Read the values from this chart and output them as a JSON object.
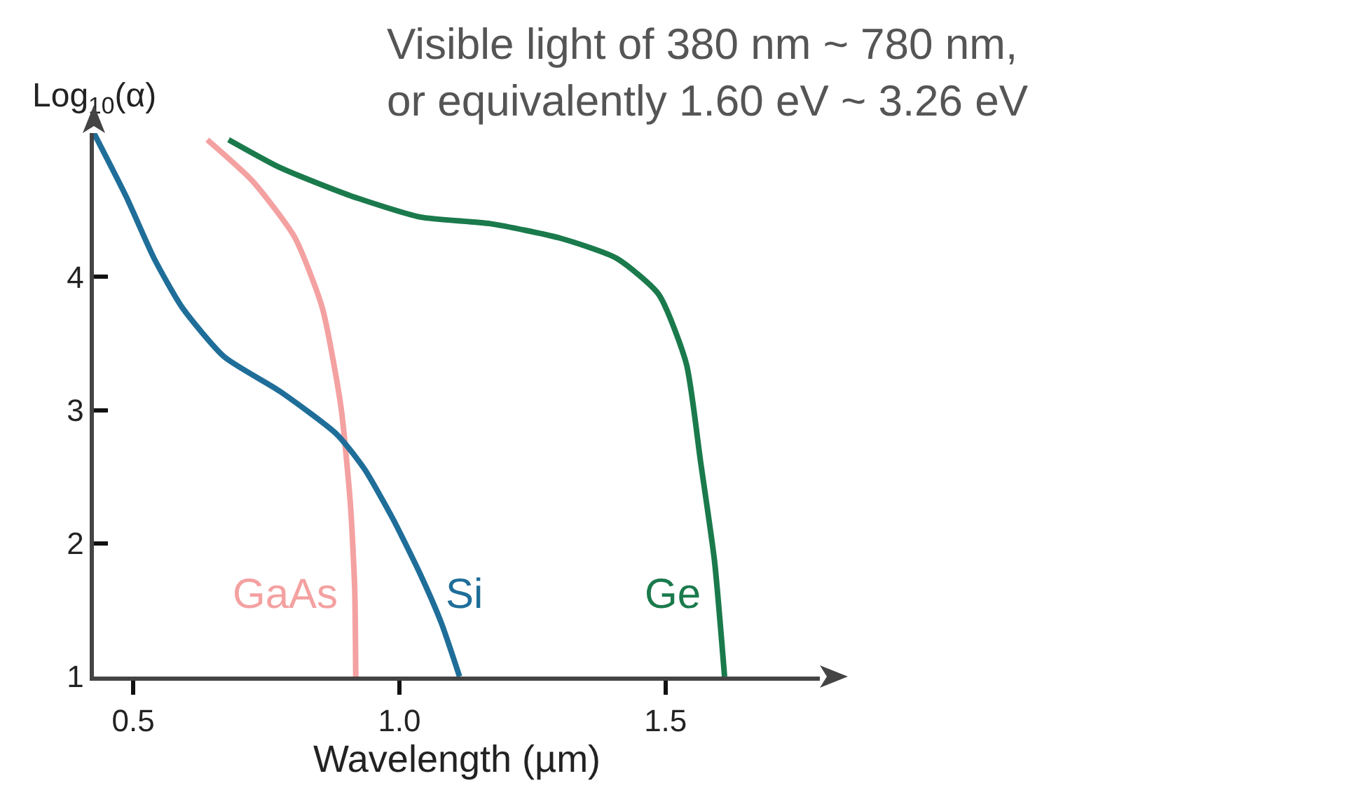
{
  "chart_data": {
    "type": "line",
    "xlabel": "Wavelength (µm)",
    "ylabel": "Log$_{10}$(α)",
    "annotations": [
      "Visible light of 380 nm ~ 780 nm,\nor equivalently 1.60 eV ~ 3.26 eV"
    ],
    "xlim": [
      0.426,
      1.79
    ],
    "xticks": [
      0.5,
      {
        "value": 1,
        "label": "1.0"
      },
      1.5
    ],
    "ylim": [
      1,
      5.08
    ],
    "yticks": [
      1,
      2,
      3,
      4
    ],
    "grid": false,
    "legend": false,
    "marker": "none",
    "line_style": "solid",
    "series": [
      {
        "name": "GaAs",
        "color": "#f4a1a1",
        "x": [
          0.639,
          0.724,
          0.803,
          0.855,
          0.89,
          0.908,
          0.916,
          0.918
        ],
        "values": [
          5.03,
          4.72,
          4.3,
          3.77,
          3.03,
          2.29,
          1.66,
          1.0
        ]
      },
      {
        "name": "Si",
        "color": "#1f6e99",
        "x": [
          0.426,
          0.487,
          0.539,
          0.592,
          0.671,
          0.776,
          0.882,
          0.934,
          0.987,
          1.039,
          1.079,
          1.113
        ],
        "values": [
          5.08,
          4.6,
          4.14,
          3.77,
          3.4,
          3.14,
          2.82,
          2.56,
          2.19,
          1.77,
          1.4,
          1.0
        ]
      },
      {
        "name": "Ge",
        "color": "#1a7a4c",
        "x": [
          0.679,
          0.776,
          0.908,
          1.039,
          1.171,
          1.303,
          1.408,
          1.487,
          1.539,
          1.566,
          1.592,
          1.611
        ],
        "values": [
          5.03,
          4.82,
          4.61,
          4.45,
          4.4,
          4.29,
          4.14,
          3.87,
          3.35,
          2.61,
          1.87,
          1.0
        ]
      }
    ]
  }
}
